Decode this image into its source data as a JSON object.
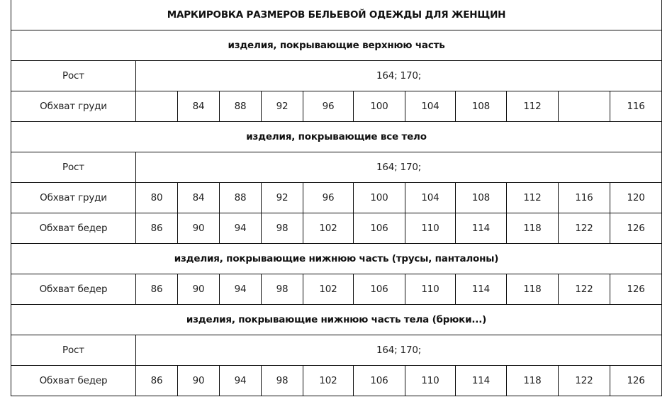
{
  "title": "МАРКИРОВКА РАЗМЕРОВ БЕЛЬЕВОЙ ОДЕЖДЫ ДЛЯ ЖЕНЩИН",
  "sections": [
    {
      "heading": "изделия, покрывающие верхнюю часть",
      "rows": [
        {
          "label": "Рост",
          "span": "164; 170;"
        },
        {
          "label": "Обхват груди",
          "values": [
            "",
            "84",
            "88",
            "92",
            "96",
            "100",
            "104",
            "108",
            "112",
            "",
            "116"
          ]
        }
      ]
    },
    {
      "heading": "изделия, покрывающие все тело",
      "rows": [
        {
          "label": "Рост",
          "span": "164; 170;"
        },
        {
          "label": "Обхват груди",
          "values": [
            "80",
            "84",
            "88",
            "92",
            "96",
            "100",
            "104",
            "108",
            "112",
            "116",
            "120"
          ]
        },
        {
          "label": "Обхват бедер",
          "values": [
            "86",
            "90",
            "94",
            "98",
            "102",
            "106",
            "110",
            "114",
            "118",
            "122",
            "126"
          ]
        }
      ]
    },
    {
      "heading": "изделия, покрывающие нижнюю часть (трусы, панталоны)",
      "rows": [
        {
          "label": "Обхват бедер",
          "values": [
            "86",
            "90",
            "94",
            "98",
            "102",
            "106",
            "110",
            "114",
            "118",
            "122",
            "126"
          ]
        }
      ]
    },
    {
      "heading": "изделия, покрывающие нижнюю часть тела (брюки...)",
      "rows": [
        {
          "label": "Рост",
          "span": "164; 170;"
        },
        {
          "label": "Обхват бедер",
          "values": [
            "86",
            "90",
            "94",
            "98",
            "102",
            "106",
            "110",
            "114",
            "118",
            "122",
            "126"
          ]
        }
      ]
    }
  ]
}
